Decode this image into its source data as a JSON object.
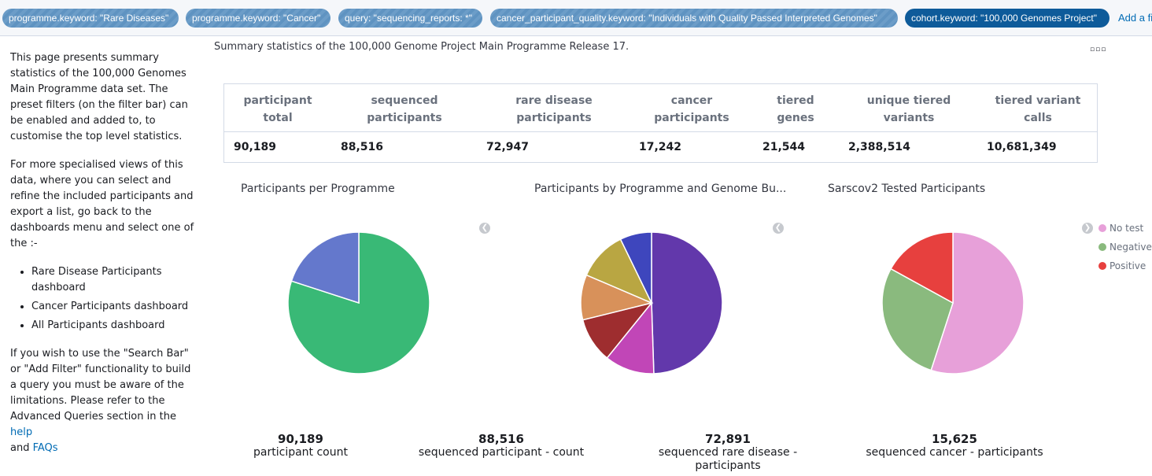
{
  "filters": [
    {
      "label": "programme.keyword: \"Rare Diseases\"",
      "state": "disabled"
    },
    {
      "label": "programme.keyword: \"Cancer\"",
      "state": "disabled"
    },
    {
      "label": "query: \"sequencing_reports: *\"",
      "state": "disabled"
    },
    {
      "label": "cancer_participant_quality.keyword: \"Individuals with Quality Passed Interpreted Genomes\"",
      "state": "disabled"
    },
    {
      "label": "cohort.keyword: \"100,000 Genomes Project\"",
      "state": "enabled"
    }
  ],
  "add_filter_label": "Add a fi",
  "left_panel": {
    "p1": "This page presents summary statistics of the 100,000 Genomes Main Programme data set. The preset filters (on the filter bar) can be enabled and added to, to customise the top level statistics.",
    "p2": "For more specialised views of this data, where you can select and refine the included participants and export a list, go back to the dashboards menu and select one of the :-",
    "list": [
      "Rare Disease Participants dashboard",
      "Cancer Participants dashboard",
      "All Participants dashboard"
    ],
    "p3_before": "If you wish to use the \"Search Bar\" or \"Add Filter\" functionality to build a query you must be aware of the limitations. Please refer to the Advanced Queries section in the ",
    "help_link": "help",
    "p3_and": " and ",
    "faqs_link": "FAQs"
  },
  "summary_title": "Summary statistics of the 100,000 Genome Project Main Programme Release 17.",
  "options_glyph": "▫▫▫",
  "stats": {
    "headers": [
      [
        "participant",
        "total"
      ],
      [
        "sequenced",
        "participants"
      ],
      [
        "rare disease",
        "participants"
      ],
      [
        "cancer",
        "participants"
      ],
      [
        "tiered",
        "genes"
      ],
      [
        "unique tiered",
        "variants"
      ],
      [
        "tiered variant",
        "calls"
      ]
    ],
    "values": [
      "90,189",
      "88,516",
      "72,947",
      "17,242",
      "21,544",
      "2,388,514",
      "10,681,349"
    ]
  },
  "charts": {
    "programme": {
      "title": "Participants per Programme"
    },
    "genome_build": {
      "title": "Participants by Programme and Genome Bu..."
    },
    "sarscov2": {
      "title": "Sarscov2 Tested Participants"
    }
  },
  "legend": [
    {
      "label": "No test",
      "color": "#e7a0d9"
    },
    {
      "label": "Negative",
      "color": "#8aba7e"
    },
    {
      "label": "Positive",
      "color": "#e7403e"
    }
  ],
  "chart_data": [
    {
      "type": "pie",
      "title": "Participants per Programme",
      "slices": [
        {
          "value": 80,
          "color": "#39b976"
        },
        {
          "value": 20,
          "color": "#6478cc"
        }
      ]
    },
    {
      "type": "pie",
      "title": "Participants by Programme and Genome Bu...",
      "slices": [
        {
          "value": 48,
          "color": "#6238ab"
        },
        {
          "value": 11,
          "color": "#c146b7"
        },
        {
          "value": 10,
          "color": "#9e2d2f"
        },
        {
          "value": 10,
          "color": "#d8915a"
        },
        {
          "value": 11,
          "color": "#b9a642"
        },
        {
          "value": 7,
          "color": "#3e46bd"
        }
      ]
    },
    {
      "type": "pie",
      "title": "Sarscov2 Tested Participants",
      "slices": [
        {
          "label": "No test",
          "value": 55,
          "color": "#e7a0d9"
        },
        {
          "label": "Negative",
          "value": 28,
          "color": "#8aba7e"
        },
        {
          "label": "Positive",
          "value": 17,
          "color": "#e7403e"
        }
      ]
    }
  ],
  "metrics": [
    {
      "value": "90,189",
      "label": "participant count"
    },
    {
      "value": "88,516",
      "label": "sequenced participant - count"
    },
    {
      "value": "72,891",
      "label": "sequenced rare disease - participants"
    },
    {
      "value": "15,625",
      "label": "sequenced cancer - participants"
    }
  ]
}
